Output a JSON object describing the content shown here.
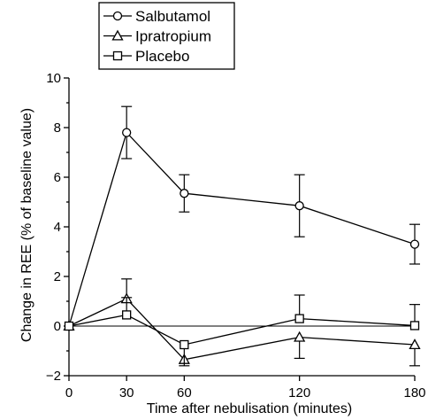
{
  "chart_data": {
    "type": "line",
    "title": "",
    "xlabel": "Time after nebulisation (minutes)",
    "ylabel": "Change in REE (% of baseline value)",
    "xlim": [
      0,
      180
    ],
    "ylim": [
      -2,
      10
    ],
    "xticks": [
      0,
      30,
      60,
      120,
      180
    ],
    "yticks": [
      -2,
      0,
      2,
      4,
      6,
      8,
      10
    ],
    "reference_line_y": 0,
    "grid": false,
    "legend_position": "top-left",
    "series": [
      {
        "name": "Salbutamol",
        "marker": "circle",
        "x": [
          0,
          30,
          60,
          120,
          180
        ],
        "y": [
          0,
          7.8,
          5.35,
          4.85,
          3.3
        ],
        "error": [
          null,
          1.05,
          0.75,
          1.25,
          0.8
        ],
        "error_direction": "both"
      },
      {
        "name": "Ipratropium",
        "marker": "triangle",
        "x": [
          0,
          30,
          60,
          120,
          180
        ],
        "y": [
          0,
          1.1,
          -1.35,
          -0.45,
          -0.75
        ],
        "error": [
          null,
          0.8,
          null,
          0.85,
          0.85
        ],
        "error_direction": "away"
      },
      {
        "name": "Placebo",
        "marker": "square",
        "x": [
          0,
          30,
          60,
          120,
          180
        ],
        "y": [
          0,
          0.45,
          -0.75,
          0.3,
          0.02
        ],
        "error": [
          null,
          0.7,
          0.85,
          0.95,
          0.85
        ],
        "error_direction": "away"
      }
    ]
  }
}
